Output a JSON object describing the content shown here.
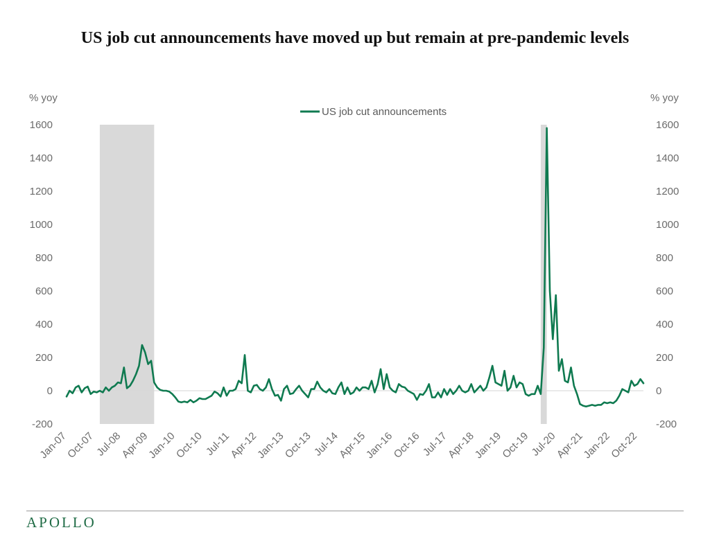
{
  "title": "US job cut announcements have moved up but remain at pre-pandemic levels",
  "brand": "APOLLO",
  "chart_data": {
    "type": "line",
    "left_unit": "% yoy",
    "right_unit": "% yoy",
    "ylim": [
      -200,
      1600
    ],
    "yticks": [
      -200,
      0,
      200,
      400,
      600,
      800,
      1000,
      1200,
      1400,
      1600
    ],
    "xlabels": [
      "Jan-07",
      "Oct-07",
      "Jul-08",
      "Apr-09",
      "Jan-10",
      "Oct-10",
      "Jul-11",
      "Apr-12",
      "Jan-13",
      "Oct-13",
      "Jul-14",
      "Apr-15",
      "Jan-16",
      "Oct-16",
      "Jul-17",
      "Apr-18",
      "Jan-19",
      "Oct-19",
      "Jul-20",
      "Apr-21",
      "Jan-22",
      "Oct-22"
    ],
    "grid": false,
    "legend_position": "top-center",
    "recessions": [
      {
        "start": "2007-12",
        "end": "2009-06"
      },
      {
        "start": "2020-02",
        "end": "2020-04"
      }
    ],
    "series": [
      {
        "name": "US job cut announcements",
        "color": "#0f7a50",
        "start": "2007-01",
        "values": [
          -35,
          0,
          -15,
          20,
          30,
          -10,
          15,
          25,
          -20,
          -5,
          -10,
          0,
          -10,
          20,
          0,
          20,
          30,
          50,
          45,
          140,
          15,
          30,
          60,
          100,
          150,
          275,
          230,
          160,
          180,
          50,
          20,
          5,
          0,
          0,
          -5,
          -20,
          -40,
          -65,
          -70,
          -65,
          -70,
          -55,
          -70,
          -60,
          -45,
          -50,
          -50,
          -40,
          -30,
          -5,
          -15,
          -35,
          20,
          -30,
          0,
          0,
          10,
          60,
          45,
          215,
          0,
          -10,
          30,
          35,
          10,
          0,
          20,
          70,
          10,
          -30,
          -25,
          -60,
          10,
          30,
          -20,
          -15,
          10,
          30,
          0,
          -20,
          -40,
          10,
          10,
          55,
          20,
          0,
          -10,
          10,
          -15,
          -20,
          20,
          50,
          -20,
          20,
          -20,
          -10,
          20,
          0,
          20,
          20,
          10,
          60,
          -10,
          40,
          130,
          10,
          100,
          20,
          0,
          -10,
          40,
          25,
          20,
          0,
          -10,
          -20,
          -55,
          -20,
          -25,
          0,
          40,
          -40,
          -40,
          -10,
          -40,
          10,
          -25,
          10,
          -20,
          0,
          30,
          0,
          -10,
          0,
          40,
          -10,
          10,
          30,
          0,
          20,
          80,
          150,
          50,
          40,
          30,
          120,
          0,
          20,
          90,
          20,
          50,
          40,
          -20,
          -30,
          -20,
          -20,
          30,
          -20,
          260,
          1580,
          600,
          310,
          575,
          120,
          190,
          60,
          50,
          140,
          30,
          -20,
          -80,
          -90,
          -95,
          -90,
          -85,
          -90,
          -85,
          -85,
          -70,
          -75,
          -70,
          -75,
          -60,
          -30,
          10,
          0,
          -10,
          60,
          30,
          40,
          70,
          45
        ]
      }
    ]
  }
}
